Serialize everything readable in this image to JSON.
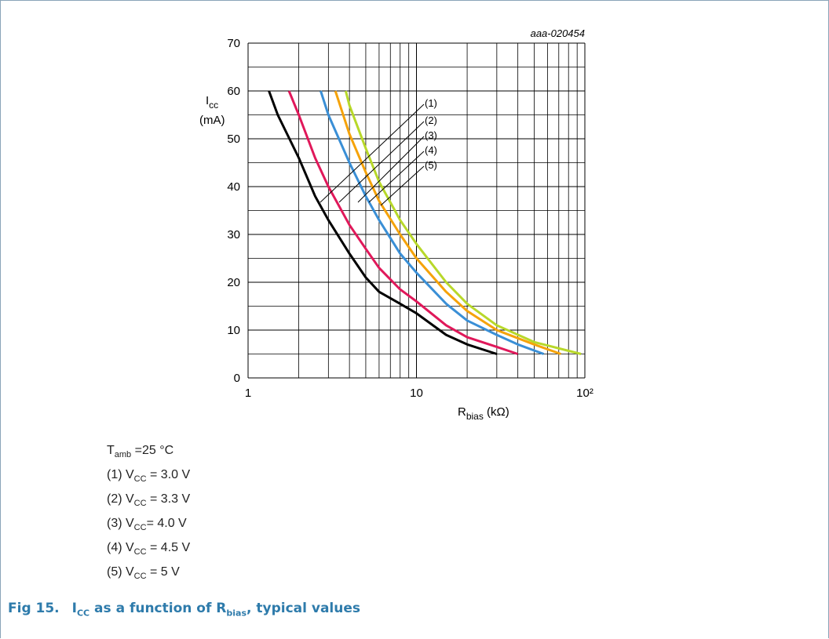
{
  "chart_data": {
    "type": "line",
    "watermark": "aaa-020454",
    "y_label": {
      "main": "I",
      "sub": "cc",
      "unit": "(mA)"
    },
    "x_label": {
      "main": "R",
      "sub": "bias",
      "unit": " (kΩ)"
    },
    "x_log": true,
    "xlim": [
      1,
      100
    ],
    "xticks": [
      1,
      10,
      {
        "value": 100,
        "label": "10²"
      }
    ],
    "xminorticks": [
      2,
      3,
      4,
      5,
      6,
      7,
      8,
      9,
      20,
      30,
      40,
      50,
      60,
      70,
      80,
      90
    ],
    "ylim": [
      0,
      70
    ],
    "yticks": [
      0,
      10,
      20,
      30,
      40,
      50,
      60,
      70
    ],
    "yminorticks": [
      5,
      15,
      25,
      35,
      45,
      55,
      65
    ],
    "grid": true,
    "series": [
      {
        "name": "(1)",
        "color": "#000000",
        "x": [
          1.33,
          1.5,
          2,
          2.5,
          3,
          4,
          5,
          6,
          8,
          10,
          15,
          20,
          30
        ],
        "values": [
          60,
          55,
          46,
          38,
          33,
          26,
          21,
          18,
          15.5,
          13.5,
          9,
          7,
          5
        ]
      },
      {
        "name": "(2)",
        "color": "#e0185a",
        "x": [
          1.75,
          2,
          2.5,
          3,
          4,
          5,
          6,
          8,
          10,
          15,
          20,
          30,
          40
        ],
        "values": [
          60,
          55,
          46,
          40,
          32,
          27,
          23,
          18.5,
          16,
          11,
          8.5,
          6.5,
          5
        ]
      },
      {
        "name": "(3)",
        "color": "#3a8fd6",
        "x": [
          2.7,
          3,
          4,
          5,
          6,
          8,
          10,
          15,
          20,
          30,
          40,
          57
        ],
        "values": [
          60,
          55,
          45,
          38,
          33,
          26,
          22,
          15.5,
          12,
          9,
          7,
          5
        ]
      },
      {
        "name": "(4)",
        "color": "#f5a30a",
        "x": [
          3.3,
          4,
          5,
          6,
          8,
          10,
          15,
          20,
          30,
          50,
          72
        ],
        "values": [
          60,
          51,
          43,
          37,
          30,
          25,
          18,
          14,
          10,
          7,
          5
        ]
      },
      {
        "name": "(5)",
        "color": "#b8d82a",
        "x": [
          3.8,
          4,
          5,
          6,
          8,
          10,
          15,
          20,
          30,
          50,
          95
        ],
        "values": [
          60,
          57,
          48,
          41,
          33,
          28,
          20,
          15.5,
          11,
          7.5,
          5
        ]
      }
    ]
  },
  "notes": [
    {
      "text": "T",
      "sub": "amb",
      "rest": " =25 °C"
    },
    {
      "text": "(1) V",
      "sub": "CC",
      "rest": " = 3.0 V"
    },
    {
      "text": "(2) V",
      "sub": "CC",
      "rest": " = 3.3 V"
    },
    {
      "text": "(3) V",
      "sub": "CC",
      "rest": "= 4.0 V"
    },
    {
      "text": "(4) V",
      "sub": "CC",
      "rest": " = 4.5 V"
    },
    {
      "text": "(5) V",
      "sub": "CC",
      "rest": " = 5 V"
    }
  ],
  "caption": {
    "label": "Fig 15.",
    "parts": [
      {
        "t": "I"
      },
      {
        "t": "CC",
        "sub": true
      },
      {
        "t": " as a function of R"
      },
      {
        "t": "bias",
        "sub": true
      },
      {
        "t": ", typical values"
      }
    ]
  }
}
